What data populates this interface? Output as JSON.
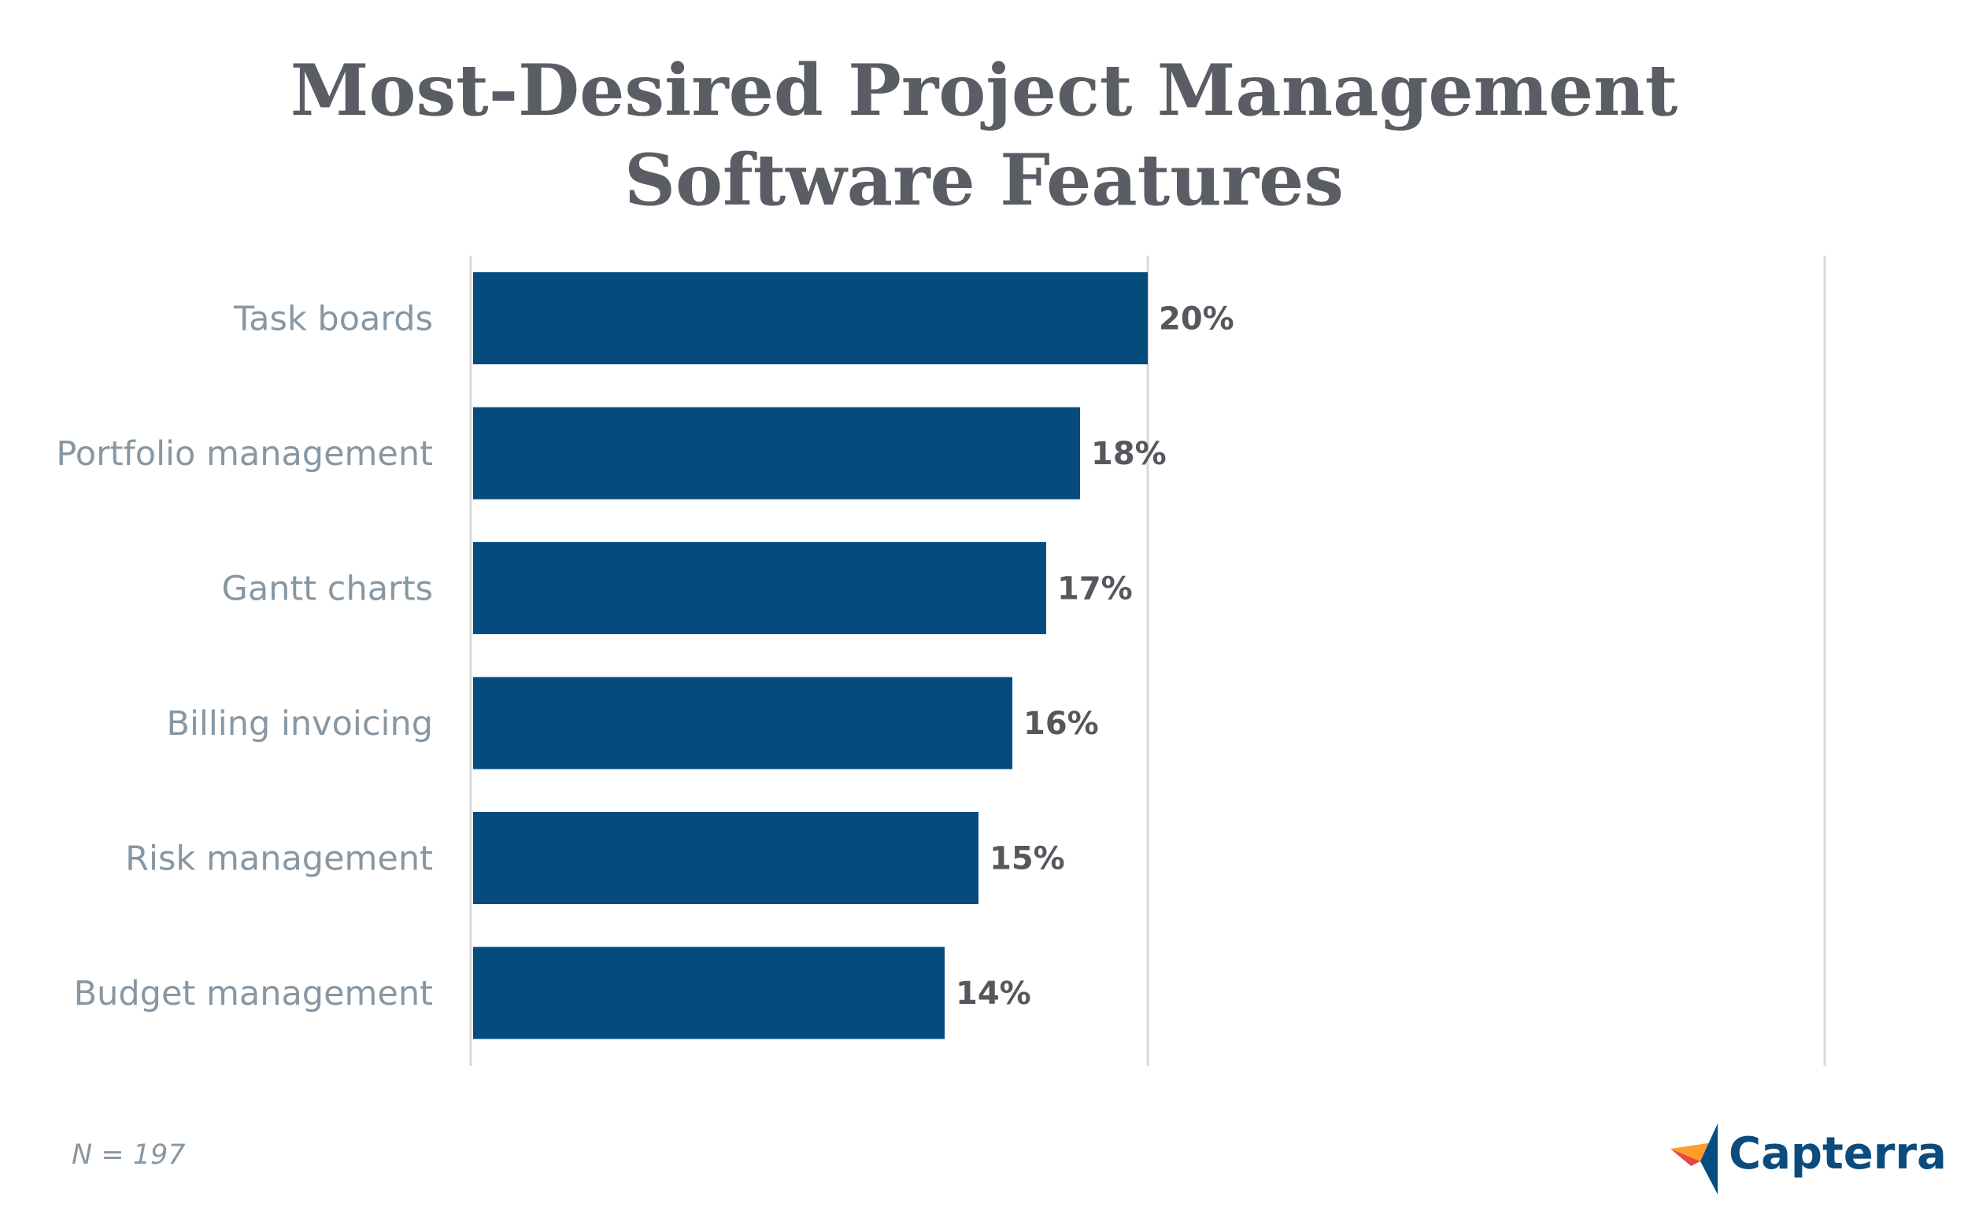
{
  "chart_data": {
    "type": "bar",
    "orientation": "horizontal",
    "title": [
      "Most-Desired Project Management",
      "Software Features"
    ],
    "categories": [
      "Task boards",
      "Portfolio management",
      "Gantt charts",
      "Billing invoicing",
      "Risk management",
      "Budget management"
    ],
    "values": [
      20,
      18,
      17,
      16,
      15,
      14
    ],
    "value_labels": [
      "20%",
      "18%",
      "17%",
      "16%",
      "15%",
      "14%"
    ],
    "xlim": [
      0,
      40
    ],
    "grid": true,
    "bar_color": "#064b7e"
  },
  "footnote": "N = 197",
  "brand": {
    "name": "Capterra",
    "icon": "capterra-logo-icon"
  }
}
